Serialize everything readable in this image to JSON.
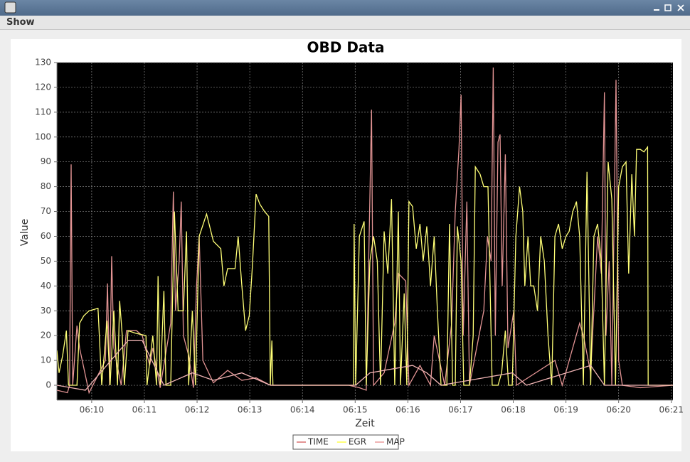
{
  "menu": [
    "Show"
  ],
  "chart_data": {
    "type": "line",
    "title": "OBD Data",
    "x_label": "Zeit",
    "y_label": "Value",
    "xlim": [
      369.34,
      381.03
    ],
    "ylim": [
      -6,
      130
    ],
    "xticks": [
      {
        "value": 370,
        "label": "06:10"
      },
      {
        "value": 371,
        "label": "06:11"
      },
      {
        "value": 372,
        "label": "06:12"
      },
      {
        "value": 373,
        "label": "06:13"
      },
      {
        "value": 374,
        "label": "06:14"
      },
      {
        "value": 375,
        "label": "06:15"
      },
      {
        "value": 376,
        "label": "06:16"
      },
      {
        "value": 377,
        "label": "06:17"
      },
      {
        "value": 378,
        "label": "06:18"
      },
      {
        "value": 379,
        "label": "06:19"
      },
      {
        "value": 380,
        "label": "06:20"
      },
      {
        "value": 381,
        "label": "06:21"
      }
    ],
    "yticks": [
      0,
      10,
      20,
      30,
      40,
      50,
      60,
      70,
      80,
      90,
      100,
      110,
      120,
      130
    ],
    "grid": true,
    "legend": "bottom",
    "series": [
      {
        "name": "TIME",
        "color": "#e39494",
        "x": [
          369.34,
          369.54,
          369.58,
          369.61,
          369.64,
          369.72,
          369.77,
          369.95,
          370.26,
          370.3,
          370.34,
          370.38,
          370.42,
          370.56,
          370.66,
          370.85,
          370.96,
          371.1,
          371.16,
          371.3,
          371.5,
          371.55,
          371.59,
          371.66,
          371.7,
          371.74,
          371.84,
          371.93,
          371.99,
          372.04,
          372.11,
          372.31,
          372.58,
          372.85,
          373.12,
          373.39,
          374.88,
          375.08,
          375.21,
          375.31,
          375.35,
          375.55,
          375.75,
          375.82,
          375.96,
          376.02,
          376.23,
          376.43,
          376.5,
          376.7,
          376.83,
          376.9,
          376.97,
          377.01,
          377.05,
          377.12,
          377.17,
          377.44,
          377.51,
          377.58,
          377.62,
          377.66,
          377.71,
          377.75,
          377.79,
          377.85,
          377.9,
          378.01,
          378.06,
          378.79,
          378.93,
          379.26,
          379.33,
          379.47,
          379.6,
          379.67,
          379.73,
          379.76,
          379.82,
          379.87,
          379.95,
          380.0,
          380.07,
          380.41,
          381.03
        ],
        "values": [
          -2,
          -3,
          0,
          89,
          0,
          24,
          15,
          -3,
          10,
          41,
          0,
          52,
          15,
          0,
          22,
          22,
          20,
          8,
          15,
          -1,
          25,
          78,
          30,
          50,
          74,
          20,
          12,
          -1,
          40,
          60,
          10,
          1,
          6,
          2,
          3,
          0,
          0,
          -1,
          -2,
          111,
          0,
          5,
          25,
          45,
          42,
          0,
          8,
          0,
          20,
          0,
          25,
          70,
          95,
          117,
          20,
          74,
          0,
          30,
          60,
          50,
          128,
          20,
          98,
          101,
          40,
          93,
          15,
          30,
          0,
          10,
          0,
          25,
          20,
          5,
          60,
          45,
          118,
          20,
          50,
          0,
          123,
          10,
          0,
          -1,
          0
        ]
      },
      {
        "name": "EGR",
        "color": "#ffff77",
        "x": [
          369.34,
          369.38,
          369.45,
          369.52,
          369.56,
          369.72,
          369.77,
          369.85,
          369.95,
          370.12,
          370.19,
          370.29,
          370.35,
          370.42,
          370.49,
          370.53,
          370.58,
          370.62,
          370.69,
          370.83,
          371.03,
          371.05,
          371.16,
          371.23,
          371.26,
          371.3,
          371.37,
          371.41,
          371.5,
          371.57,
          371.64,
          371.74,
          371.8,
          371.84,
          371.91,
          371.97,
          372.04,
          372.18,
          372.31,
          372.45,
          372.51,
          372.58,
          372.72,
          372.78,
          372.85,
          372.92,
          372.99,
          373.05,
          373.12,
          373.19,
          373.28,
          373.36,
          373.39,
          373.42,
          373.44,
          374.97,
          374.98,
          375.01,
          375.08,
          375.17,
          375.21,
          375.28,
          375.35,
          375.42,
          375.48,
          375.55,
          375.62,
          375.69,
          375.75,
          375.82,
          375.86,
          375.93,
          375.98,
          376.02,
          376.09,
          376.16,
          376.23,
          376.29,
          376.36,
          376.43,
          376.5,
          376.56,
          376.63,
          376.74,
          376.79,
          376.85,
          376.9,
          376.94,
          377.01,
          377.06,
          377.17,
          377.24,
          377.28,
          377.37,
          377.44,
          377.52,
          377.6,
          377.71,
          377.78,
          377.85,
          377.91,
          377.98,
          378.05,
          378.12,
          378.18,
          378.22,
          378.28,
          378.33,
          378.39,
          378.46,
          378.52,
          378.59,
          378.66,
          378.73,
          378.79,
          378.86,
          378.93,
          379.0,
          379.06,
          379.13,
          379.2,
          379.26,
          379.33,
          379.4,
          379.47,
          379.53,
          379.6,
          379.67,
          379.73,
          379.8,
          379.87,
          379.94,
          380.0,
          380.07,
          380.14,
          380.19,
          380.25,
          380.3,
          380.34,
          380.41,
          380.48,
          380.55,
          380.56,
          381.03
        ],
        "values": [
          14,
          5,
          12,
          22,
          0,
          0,
          25,
          28,
          30,
          31,
          0,
          26,
          0,
          30,
          0,
          34,
          20,
          0,
          22,
          21,
          20,
          0,
          20,
          0,
          44,
          0,
          38,
          0,
          0,
          70,
          30,
          30,
          62,
          0,
          30,
          0,
          60,
          69,
          58,
          55,
          40,
          47,
          47,
          60,
          40,
          22,
          28,
          48,
          77,
          73,
          70,
          68,
          0,
          18,
          0,
          0,
          65,
          0,
          60,
          66,
          0,
          50,
          60,
          50,
          0,
          62,
          45,
          75,
          0,
          70,
          0,
          37,
          0,
          74,
          72,
          55,
          65,
          50,
          64,
          40,
          60,
          30,
          0,
          0,
          65,
          0,
          0,
          64,
          50,
          0,
          0,
          20,
          88,
          85,
          80,
          80,
          0,
          0,
          5,
          22,
          0,
          0,
          60,
          80,
          70,
          40,
          60,
          40,
          40,
          30,
          60,
          50,
          20,
          0,
          60,
          65,
          55,
          60,
          62,
          70,
          74,
          60,
          0,
          86,
          0,
          60,
          65,
          50,
          0,
          90,
          75,
          0,
          80,
          88,
          90,
          45,
          85,
          60,
          95,
          95,
          94,
          96,
          0,
          0
        ]
      },
      {
        "name": "MAP",
        "color": "#f0b4b4",
        "x": [
          369.34,
          369.88,
          370.69,
          370.96,
          371.37,
          371.91,
          372.31,
          372.85,
          373.39,
          375.01,
          375.28,
          376.09,
          376.36,
          376.63,
          377.98,
          378.25,
          379.47,
          379.73,
          381.03
        ],
        "values": [
          0,
          -2,
          18,
          18,
          0,
          5,
          2,
          5,
          0,
          0,
          5,
          8,
          5,
          0,
          5,
          0,
          8,
          0,
          0
        ]
      }
    ]
  }
}
